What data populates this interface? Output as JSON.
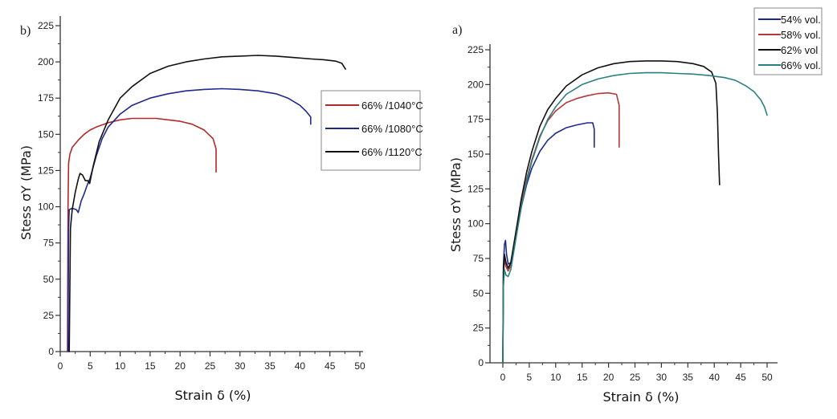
{
  "chart_data": [
    {
      "type": "line",
      "panel_label": "b)",
      "title": "",
      "xlabel": "Strain δ (%)",
      "ylabel": "Stess σY (MPa)",
      "xlim": [
        0,
        50
      ],
      "ylim": [
        0,
        225
      ],
      "xticks": [
        0,
        5,
        10,
        15,
        20,
        25,
        30,
        35,
        40,
        45,
        50
      ],
      "yticks": [
        0,
        25,
        50,
        75,
        100,
        125,
        150,
        175,
        200,
        225
      ],
      "grid": false,
      "legend_position": "center-right",
      "series": [
        {
          "name": "66% /1040°C",
          "color": "#b02a2a",
          "x": [
            1.2,
            1.3,
            1.4,
            1.6,
            2.0,
            3.0,
            4.0,
            5.0,
            6.0,
            8.0,
            10.0,
            12.0,
            14.0,
            16.0,
            18.0,
            20.0,
            22.0,
            24.0,
            25.5,
            26.0,
            26.0
          ],
          "y": [
            0,
            100,
            130,
            136,
            141,
            146,
            150,
            153,
            155,
            158,
            160,
            161,
            161,
            161,
            160,
            159,
            157,
            153,
            147,
            140,
            124
          ]
        },
        {
          "name": "66% /1080°C",
          "color": "#1f2a8f",
          "x": [
            1.3,
            1.4,
            1.5,
            2.0,
            2.7,
            3.0,
            3.5,
            4.0,
            4.5,
            5.0,
            6.0,
            7.0,
            8.0,
            10.0,
            12.0,
            15.0,
            18.0,
            21.0,
            24.0,
            27.0,
            30.0,
            33.0,
            36.0,
            38.0,
            40.0,
            41.0,
            41.8,
            41.8
          ],
          "y": [
            0,
            85,
            98,
            99,
            98,
            96,
            104,
            109,
            115,
            120,
            135,
            147,
            155,
            164,
            170,
            175,
            178,
            180,
            181,
            181.5,
            181,
            180,
            178,
            175,
            170,
            166,
            162,
            157
          ]
        },
        {
          "name": "66% /1120°C",
          "color": "#111111",
          "x": [
            1.5,
            1.7,
            2.0,
            2.5,
            3.0,
            3.3,
            3.7,
            4.2,
            4.6,
            4.9,
            5.5,
            6.5,
            8.0,
            10.0,
            12.0,
            15.0,
            18.0,
            21.0,
            24.0,
            27.0,
            30.0,
            33.0,
            36.0,
            39.0,
            42.0,
            44.0,
            46.0,
            47.0,
            47.6
          ],
          "y": [
            0,
            85,
            98,
            110,
            119,
            123,
            122,
            118,
            118,
            116,
            128,
            145,
            160,
            175,
            183,
            192,
            197,
            200,
            202,
            203.5,
            204,
            204.5,
            204,
            203,
            202,
            201.5,
            200.5,
            199,
            195
          ]
        }
      ]
    },
    {
      "type": "line",
      "panel_label": "a)",
      "title": "",
      "xlabel": "Strain δ (%)",
      "ylabel": "Stess σY (MPa)",
      "xlim": [
        -2.5,
        52
      ],
      "ylim": [
        0,
        225
      ],
      "xticks": [
        0,
        5,
        10,
        15,
        20,
        25,
        30,
        35,
        40,
        45,
        50
      ],
      "yticks": [
        0,
        25,
        50,
        75,
        100,
        125,
        150,
        175,
        200,
        225
      ],
      "grid": false,
      "legend_position": "top-right",
      "series": [
        {
          "name": "54% vol.",
          "color": "#1f2a8f",
          "x": [
            0.0,
            0.1,
            0.3,
            0.5,
            0.7,
            1.0,
            1.5,
            2.5,
            3.5,
            4.5,
            5.5,
            7.0,
            8.5,
            10.0,
            12.0,
            14.0,
            16.0,
            17.0,
            17.3,
            17.3
          ],
          "y": [
            0,
            70,
            85,
            88,
            78,
            71,
            72,
            92,
            112,
            128,
            140,
            152,
            160,
            165,
            169,
            171,
            172.5,
            172.5,
            168,
            155
          ]
        },
        {
          "name": "58% vol.",
          "color": "#b23a3a",
          "x": [
            0.0,
            0.1,
            0.3,
            0.6,
            1.0,
            1.5,
            2.5,
            3.5,
            4.5,
            5.5,
            7.0,
            8.5,
            10.0,
            12.0,
            14.0,
            16.0,
            18.0,
            20.0,
            21.5,
            22.0,
            22.0
          ],
          "y": [
            0,
            62,
            75,
            69,
            66,
            70,
            92,
            114,
            132,
            146,
            163,
            174,
            181,
            187,
            190,
            192,
            193.5,
            194,
            193,
            185,
            155
          ]
        },
        {
          "name": "62% vol",
          "color": "#111111",
          "x": [
            0.0,
            0.1,
            0.3,
            0.6,
            1.0,
            1.5,
            2.5,
            3.5,
            4.5,
            5.5,
            7.0,
            8.5,
            10.0,
            12.0,
            15.0,
            18.0,
            21.0,
            24.0,
            27.0,
            30.0,
            33.0,
            36.0,
            38.0,
            39.5,
            40.3,
            40.6,
            40.8,
            41.0
          ],
          "y": [
            0,
            65,
            78,
            72,
            68,
            72,
            95,
            118,
            137,
            152,
            170,
            182,
            190,
            199,
            207,
            212,
            215,
            216.5,
            217,
            217,
            216.5,
            215,
            213,
            209,
            201,
            180,
            150,
            128
          ]
        },
        {
          "name": "66% vol.",
          "color": "#2a8080",
          "x": [
            0.0,
            0.1,
            0.3,
            0.6,
            1.0,
            1.5,
            2.5,
            3.5,
            4.5,
            5.5,
            7.0,
            8.5,
            10.0,
            12.0,
            15.0,
            18.0,
            21.0,
            24.0,
            27.0,
            30.0,
            33.0,
            36.0,
            39.0,
            42.0,
            44.0,
            46.0,
            47.5,
            48.8,
            49.5,
            50.0
          ],
          "y": [
            0,
            55,
            67,
            63,
            62,
            67,
            90,
            112,
            130,
            145,
            162,
            175,
            184,
            193,
            200,
            204,
            206.5,
            208,
            208.5,
            208.5,
            208,
            207.5,
            206.5,
            205,
            203,
            199,
            195,
            189,
            184,
            178
          ]
        }
      ]
    }
  ]
}
